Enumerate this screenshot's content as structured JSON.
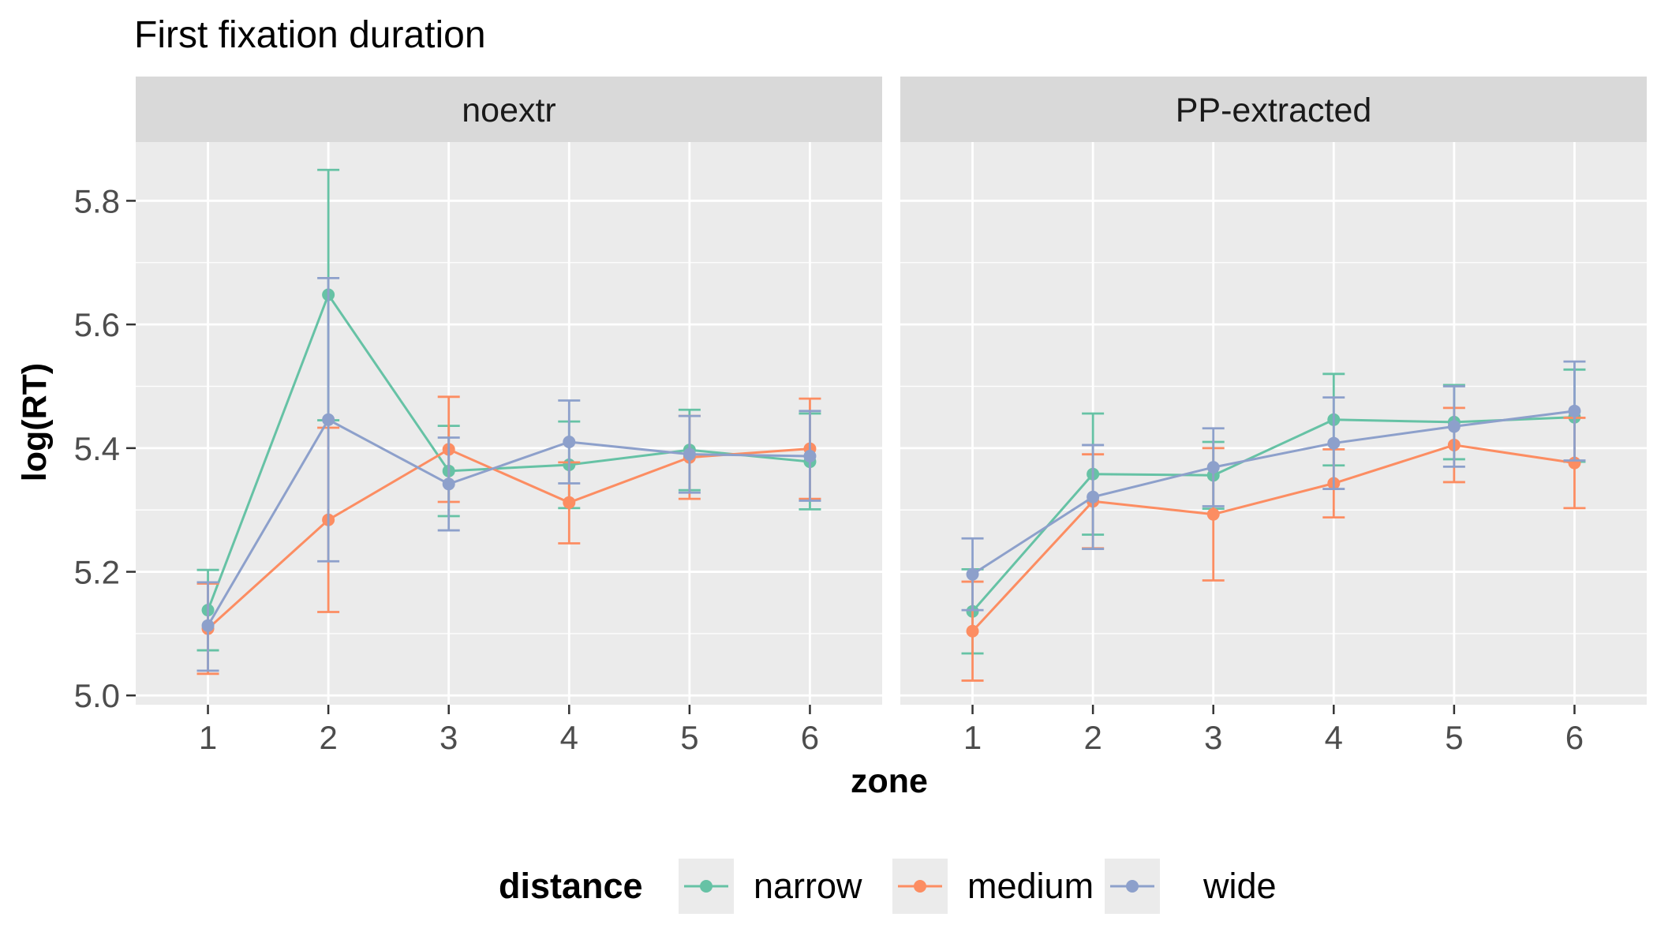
{
  "chart_data": {
    "type": "line",
    "title": "First fixation duration",
    "xlabel": "zone",
    "ylabel": "log(RT)",
    "x": [
      1,
      2,
      3,
      4,
      5,
      6
    ],
    "x_tick_labels": [
      "1",
      "2",
      "3",
      "4",
      "5",
      "6"
    ],
    "ylim": [
      4.985,
      5.895
    ],
    "y_ticks": [
      5.0,
      5.2,
      5.4,
      5.6,
      5.8
    ],
    "y_tick_labels": [
      "5.0",
      "5.2",
      "5.4",
      "5.6",
      "5.8"
    ],
    "grid": true,
    "legend": {
      "title": "distance",
      "position": "bottom",
      "entries": [
        "narrow",
        "medium",
        "wide"
      ]
    },
    "colors": {
      "narrow": "#66c2a5",
      "medium": "#fc8d62",
      "wide": "#8da0cb",
      "panel_bg": "#ebebeb",
      "strip_bg": "#d9d9d9",
      "grid": "#ffffff"
    },
    "facets": [
      {
        "label": "noextr",
        "series": [
          {
            "name": "narrow",
            "y": [
              5.138,
              5.648,
              5.363,
              5.373,
              5.397,
              5.378
            ],
            "lo": [
              5.073,
              5.445,
              5.29,
              5.303,
              5.332,
              5.301
            ],
            "hi": [
              5.203,
              5.85,
              5.436,
              5.443,
              5.462,
              5.456
            ]
          },
          {
            "name": "medium",
            "y": [
              5.108,
              5.284,
              5.398,
              5.312,
              5.385,
              5.399
            ],
            "lo": [
              5.035,
              5.135,
              5.313,
              5.246,
              5.318,
              5.318
            ],
            "hi": [
              5.181,
              5.433,
              5.483,
              5.377,
              5.452,
              5.48
            ]
          },
          {
            "name": "wide",
            "y": [
              5.113,
              5.446,
              5.342,
              5.41,
              5.39,
              5.387
            ],
            "lo": [
              5.04,
              5.217,
              5.267,
              5.343,
              5.328,
              5.315
            ],
            "hi": [
              5.183,
              5.675,
              5.417,
              5.477,
              5.452,
              5.46
            ]
          }
        ]
      },
      {
        "label": "PP-extracted",
        "series": [
          {
            "name": "narrow",
            "y": [
              5.136,
              5.358,
              5.356,
              5.446,
              5.442,
              5.45
            ],
            "lo": [
              5.068,
              5.26,
              5.302,
              5.372,
              5.382,
              5.378
            ],
            "hi": [
              5.204,
              5.456,
              5.41,
              5.52,
              5.502,
              5.527
            ]
          },
          {
            "name": "medium",
            "y": [
              5.104,
              5.314,
              5.293,
              5.343,
              5.405,
              5.376
            ],
            "lo": [
              5.024,
              5.238,
              5.186,
              5.288,
              5.345,
              5.303
            ],
            "hi": [
              5.184,
              5.39,
              5.4,
              5.398,
              5.465,
              5.449
            ]
          },
          {
            "name": "wide",
            "y": [
              5.196,
              5.321,
              5.369,
              5.408,
              5.435,
              5.46
            ],
            "lo": [
              5.138,
              5.237,
              5.306,
              5.334,
              5.37,
              5.38
            ],
            "hi": [
              5.254,
              5.405,
              5.432,
              5.482,
              5.5,
              5.54
            ]
          }
        ]
      }
    ]
  }
}
